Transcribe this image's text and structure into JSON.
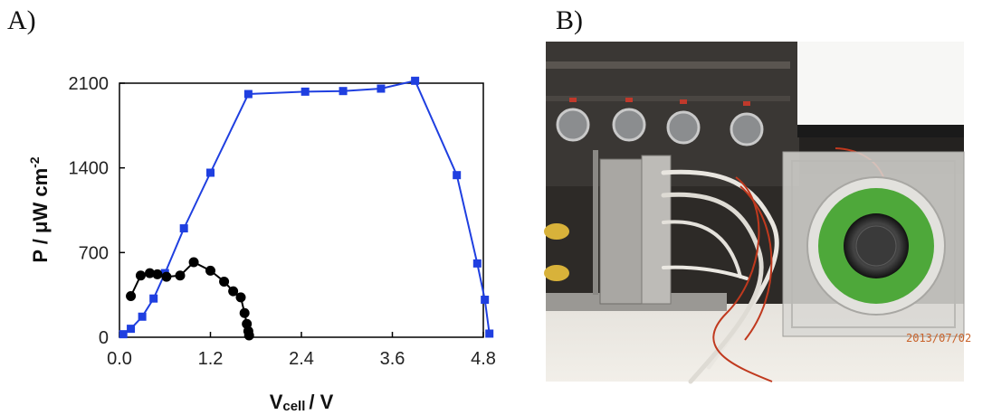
{
  "panels": {
    "a_label": "A)",
    "b_label": "B)"
  },
  "chart_data": {
    "type": "line",
    "title": "",
    "xlabel": "/ V",
    "xlabel_main": "V",
    "xlabel_sub": "cell",
    "ylabel": "P / μW cm",
    "ylabel_sup": "-2",
    "xlim": [
      0,
      4.8
    ],
    "ylim": [
      0,
      2100
    ],
    "xticks": [
      0.0,
      1.2,
      2.4,
      3.6,
      4.8
    ],
    "xtick_labels": [
      "0.0",
      "1.2",
      "2.4",
      "3.6",
      "4.8"
    ],
    "yticks": [
      0,
      700,
      1400,
      2100
    ],
    "ytick_labels": [
      "0",
      "700",
      "1400",
      "2100"
    ],
    "grid": false,
    "legend": "none",
    "series": [
      {
        "color": "#1f3fe0",
        "marker": "square",
        "x": [
          0.05,
          0.15,
          0.3,
          0.45,
          0.6,
          0.85,
          1.2,
          1.7,
          2.45,
          2.95,
          3.45,
          3.9,
          4.45,
          4.72,
          4.82,
          4.88
        ],
        "y": [
          25,
          70,
          170,
          320,
          530,
          900,
          1360,
          2010,
          2030,
          2035,
          2055,
          2120,
          1340,
          610,
          310,
          30
        ]
      },
      {
        "color": "#000000",
        "marker": "circle",
        "x": [
          0.15,
          0.28,
          0.4,
          0.5,
          0.62,
          0.8,
          0.98,
          1.2,
          1.38,
          1.5,
          1.6,
          1.65,
          1.68,
          1.7,
          1.71
        ],
        "y": [
          340,
          510,
          530,
          520,
          500,
          510,
          620,
          550,
          460,
          380,
          330,
          200,
          110,
          50,
          15
        ]
      }
    ]
  },
  "photo": {
    "date_stamp": "2013/07/02",
    "accent_green": "#4ea83a",
    "wire_red": "#c0391e"
  }
}
